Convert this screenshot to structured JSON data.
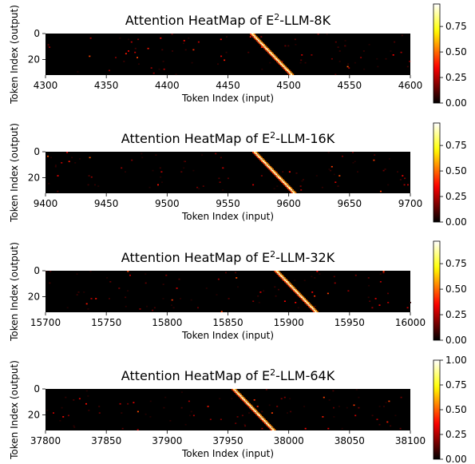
{
  "chart_data": [
    {
      "type": "heatmap",
      "title": "Attention HeatMap of E²-LLM-8K",
      "title_parts": {
        "pre": "Attention HeatMap of E",
        "sup": "2",
        "post": "-LLM-8K"
      },
      "xlabel": "Token Index (input)",
      "ylabel": "Token Index (output)",
      "xlim": [
        4300,
        4600
      ],
      "xticks": [
        "4300",
        "4350",
        "4400",
        "4450",
        "4500",
        "4550",
        "4600"
      ],
      "yticks": [
        "0",
        "20"
      ],
      "rows": 32,
      "diagonal": {
        "x_start": 4470,
        "x_end": 4502
      },
      "colorbar": {
        "ticks": [
          "0.00",
          "0.25",
          "0.50",
          "0.75"
        ],
        "range": [
          0,
          0.97
        ],
        "colormap": "hot"
      }
    },
    {
      "type": "heatmap",
      "title": "Attention HeatMap of E²-LLM-16K",
      "title_parts": {
        "pre": "Attention HeatMap of E",
        "sup": "2",
        "post": "-LLM-16K"
      },
      "xlabel": "Token Index (input)",
      "ylabel": "Token Index (output)",
      "xlim": [
        9400,
        9700
      ],
      "xticks": [
        "9400",
        "9450",
        "9500",
        "9550",
        "9600",
        "9650",
        "9700"
      ],
      "yticks": [
        "0",
        "20"
      ],
      "rows": 32,
      "diagonal": {
        "x_start": 9572,
        "x_end": 9604
      },
      "colorbar": {
        "ticks": [
          "0.00",
          "0.25",
          "0.50",
          "0.75"
        ],
        "range": [
          0,
          0.97
        ],
        "colormap": "hot"
      }
    },
    {
      "type": "heatmap",
      "title": "Attention HeatMap of E²-LLM-32K",
      "title_parts": {
        "pre": "Attention HeatMap of E",
        "sup": "2",
        "post": "-LLM-32K"
      },
      "xlabel": "Token Index (input)",
      "ylabel": "Token Index (output)",
      "xlim": [
        15700,
        16000
      ],
      "xticks": [
        "15700",
        "15750",
        "15800",
        "15850",
        "15900",
        "15950",
        "16000"
      ],
      "yticks": [
        "0",
        "20"
      ],
      "rows": 32,
      "diagonal": {
        "x_start": 15890,
        "x_end": 15922
      },
      "colorbar": {
        "ticks": [
          "0.00",
          "0.25",
          "0.50",
          "0.75"
        ],
        "range": [
          0,
          0.97
        ],
        "colormap": "hot"
      }
    },
    {
      "type": "heatmap",
      "title": "Attention HeatMap of E²-LLM-64K",
      "title_parts": {
        "pre": "Attention HeatMap of E",
        "sup": "2",
        "post": "-LLM-64K"
      },
      "xlabel": "Token Index (input)",
      "ylabel": "Token Index (output)",
      "xlim": [
        37800,
        38100
      ],
      "xticks": [
        "37800",
        "37850",
        "37900",
        "37950",
        "38000",
        "38050",
        "38100"
      ],
      "yticks": [
        "0",
        "20"
      ],
      "rows": 32,
      "diagonal": {
        "x_start": 37955,
        "x_end": 37987
      },
      "colorbar": {
        "ticks": [
          "0.00",
          "0.25",
          "0.50",
          "0.75",
          "1.00"
        ],
        "range": [
          0,
          1.0
        ],
        "colormap": "hot"
      }
    }
  ]
}
